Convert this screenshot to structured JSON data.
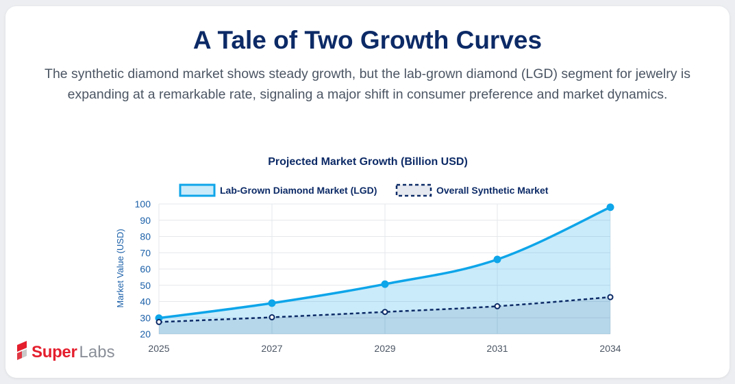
{
  "header": {
    "title": "A Tale of Two Growth Curves",
    "subtitle": "The synthetic diamond market shows steady growth, but the lab-grown diamond (LGD) segment for jewelry is expanding at a remarkable rate, signaling a major shift in consumer preference and market dynamics."
  },
  "brand": {
    "super": "Super",
    "labs": "Labs",
    "logo_icon": "superlabs-logo-icon",
    "color": "#e41e2d"
  },
  "chart_data": {
    "type": "line",
    "title": "Projected Market Growth (Billion USD)",
    "xlabel": "",
    "ylabel": "Market Value (USD)",
    "categories": [
      "2025",
      "2027",
      "2029",
      "2031",
      "2034"
    ],
    "ylim": [
      20,
      100
    ],
    "yticks": [
      20,
      30,
      40,
      50,
      60,
      70,
      80,
      90,
      100
    ],
    "grid": true,
    "legend_position": "top-center",
    "series": [
      {
        "name": "Lab-Grown Diamond Market (LGD)",
        "values": [
          29.8,
          39,
          50.7,
          65.9,
          98
        ],
        "color": "#0ea5e9",
        "fill": true,
        "style": "solid"
      },
      {
        "name": "Overall Synthetic Market",
        "values": [
          27.4,
          30.3,
          33.6,
          37.1,
          42.7
        ],
        "color": "#0c2a66",
        "fill": true,
        "style": "dashed"
      }
    ]
  }
}
